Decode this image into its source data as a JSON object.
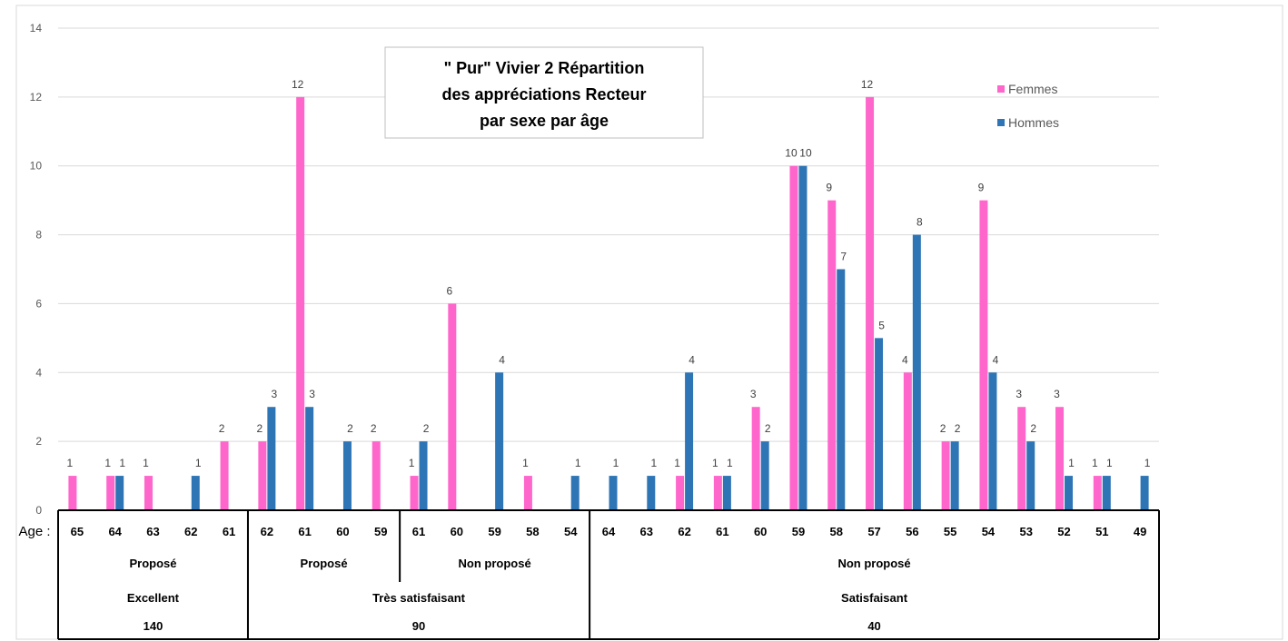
{
  "chart_data": {
    "type": "bar",
    "title": "\" Pur\" Vivier 2 Répartition des appréciations Recteur par sexe par âge",
    "title_lines": [
      "\" Pur\" Vivier 2 Répartition",
      "des appréciations Recteur",
      "par sexe par âge"
    ],
    "x_prefix_label": "Age :",
    "ylim": [
      0,
      14
    ],
    "yticks": [
      "0",
      "2",
      "4",
      "6",
      "8",
      "10",
      "12",
      "14"
    ],
    "grid": true,
    "legend_position": "top-right",
    "colors": {
      "Femmes": "#FF66CC",
      "Hommes": "#2E75B6"
    },
    "categories": [
      "65",
      "64",
      "63",
      "62",
      "61",
      "62",
      "61",
      "60",
      "59",
      "61",
      "60",
      "59",
      "58",
      "54",
      "64",
      "63",
      "62",
      "61",
      "60",
      "59",
      "58",
      "57",
      "56",
      "55",
      "54",
      "53",
      "52",
      "51",
      "49"
    ],
    "series": [
      {
        "name": "Femmes",
        "values": [
          1,
          1,
          1,
          null,
          2,
          2,
          12,
          null,
          2,
          1,
          6,
          null,
          1,
          null,
          null,
          null,
          1,
          1,
          3,
          10,
          9,
          12,
          4,
          2,
          9,
          3,
          3,
          1,
          null
        ]
      },
      {
        "name": "Hommes",
        "values": [
          null,
          1,
          null,
          1,
          null,
          3,
          3,
          2,
          null,
          2,
          null,
          4,
          null,
          1,
          1,
          1,
          4,
          1,
          2,
          10,
          7,
          5,
          8,
          2,
          4,
          2,
          1,
          1,
          1
        ]
      }
    ],
    "group_levels": [
      {
        "name": "proposition",
        "groups": [
          {
            "label": "Proposé",
            "span": 5
          },
          {
            "label": "Proposé",
            "span": 4
          },
          {
            "label": "Non proposé",
            "span": 5
          },
          {
            "label": "Non proposé",
            "span": 15
          }
        ]
      },
      {
        "name": "appreciation",
        "groups": [
          {
            "label": "Excellent",
            "span": 5
          },
          {
            "label": "Très satisfaisant",
            "span": 9
          },
          {
            "label": "Satisfaisant",
            "span": 15
          }
        ]
      },
      {
        "name": "points",
        "groups": [
          {
            "label": "140",
            "span": 5
          },
          {
            "label": "90",
            "span": 9
          },
          {
            "label": "40",
            "span": 15
          }
        ]
      }
    ]
  }
}
